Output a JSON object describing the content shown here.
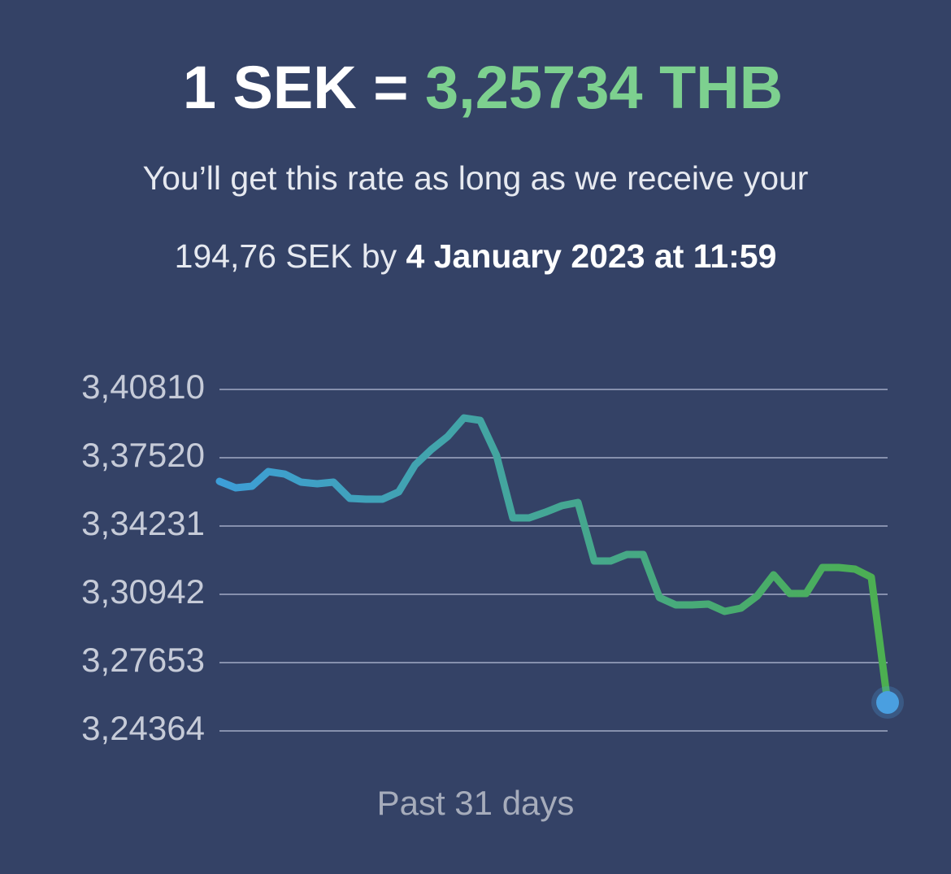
{
  "header": {
    "base": "1 SEK =",
    "rate": "3,25734 THB"
  },
  "note": {
    "line1": "You’ll get this rate as long as we receive your",
    "amount": "194,76 SEK by",
    "deadline": "4 January 2023 at 11:59"
  },
  "chart_data": {
    "type": "line",
    "xlabel": "Past 31 days",
    "values": [
      3.36384,
      3.36071,
      3.36149,
      3.36854,
      3.36737,
      3.36345,
      3.36267,
      3.36345,
      3.35562,
      3.35523,
      3.35523,
      3.35875,
      3.37167,
      3.37911,
      3.38538,
      3.39438,
      3.39321,
      3.37637,
      3.34622,
      3.34622,
      3.34896,
      3.3521,
      3.35366,
      3.32547,
      3.32547,
      3.3286,
      3.3286,
      3.30785,
      3.30433,
      3.30433,
      3.30472,
      3.3012,
      3.30276,
      3.30864,
      3.31882,
      3.30981,
      3.30981,
      3.32234,
      3.32234,
      3.32156,
      3.31764,
      3.25734
    ],
    "color_start": "#3d9ed8",
    "color_end": "#4caf50",
    "marker_color": "#4a9fe0",
    "ylim": [
      3.24364,
      3.4081
    ],
    "yticks": [
      {
        "value": 3.24364,
        "label": "3,24364"
      },
      {
        "value": 3.27653,
        "label": "3,27653"
      },
      {
        "value": 3.30942,
        "label": "3,30942"
      },
      {
        "value": 3.34231,
        "label": "3,34231"
      },
      {
        "value": 3.3752,
        "label": "3,37520"
      },
      {
        "value": 3.4081,
        "label": "3,40810"
      }
    ],
    "grid": true
  }
}
